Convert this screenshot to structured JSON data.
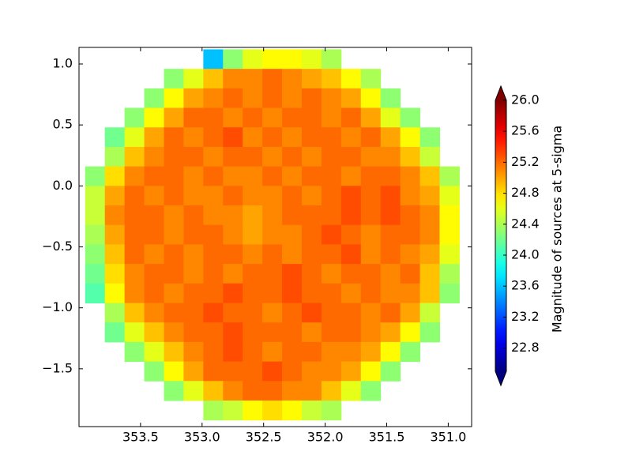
{
  "chart_data": {
    "type": "heatmap",
    "x": [
      353.87,
      353.71,
      353.55,
      353.39,
      353.23,
      353.07,
      352.91,
      352.75,
      352.59,
      352.43,
      352.27,
      352.11,
      351.95,
      351.79,
      351.63,
      351.47,
      351.31,
      351.15,
      350.99,
      350.83
    ],
    "y": [
      1.04,
      0.88,
      0.72,
      0.56,
      0.4,
      0.24,
      0.08,
      -0.08,
      -0.24,
      -0.4,
      -0.56,
      -0.72,
      -0.88,
      -1.04,
      -1.2,
      -1.36,
      -1.52,
      -1.68,
      -1.84
    ],
    "z": [
      [
        null,
        null,
        null,
        null,
        null,
        null,
        23.6,
        24.3,
        24.6,
        24.7,
        24.7,
        24.6,
        24.4,
        null,
        null,
        null,
        null,
        null,
        null,
        null
      ],
      [
        null,
        null,
        null,
        null,
        24.3,
        24.6,
        24.9,
        25.1,
        25.1,
        25.2,
        25.1,
        25.0,
        24.9,
        24.7,
        24.4,
        null,
        null,
        null,
        null,
        null
      ],
      [
        null,
        null,
        null,
        24.3,
        24.7,
        25.0,
        25.1,
        25.2,
        25.1,
        25.2,
        25.1,
        25.2,
        25.1,
        25.0,
        24.7,
        24.3,
        null,
        null,
        null,
        null
      ],
      [
        null,
        null,
        24.3,
        24.7,
        25.0,
        25.2,
        25.2,
        25.1,
        25.2,
        25.1,
        25.2,
        25.2,
        25.1,
        25.2,
        25.0,
        24.6,
        24.3,
        null,
        null,
        null
      ],
      [
        null,
        24.2,
        24.6,
        25.0,
        25.2,
        25.1,
        25.2,
        25.3,
        25.1,
        25.2,
        25.1,
        25.2,
        25.2,
        25.1,
        25.2,
        25.0,
        24.7,
        24.3,
        null,
        null
      ],
      [
        null,
        24.4,
        24.9,
        25.1,
        25.2,
        25.2,
        25.1,
        25.2,
        25.2,
        25.1,
        25.2,
        25.1,
        25.2,
        25.2,
        25.1,
        25.1,
        24.9,
        24.5,
        null,
        null
      ],
      [
        24.3,
        24.8,
        25.1,
        25.2,
        25.2,
        25.1,
        25.2,
        25.1,
        25.1,
        25.2,
        25.1,
        25.2,
        25.2,
        25.1,
        25.2,
        25.2,
        25.1,
        24.9,
        24.4,
        null
      ],
      [
        24.5,
        25.0,
        25.2,
        25.1,
        25.2,
        25.1,
        25.1,
        25.2,
        25.1,
        25.1,
        25.2,
        25.1,
        25.2,
        25.3,
        25.2,
        25.3,
        25.1,
        25.0,
        24.6,
        null
      ],
      [
        24.5,
        25.1,
        25.2,
        25.2,
        25.1,
        25.2,
        25.1,
        25.1,
        25.0,
        25.1,
        25.2,
        25.2,
        25.2,
        25.3,
        25.2,
        25.3,
        25.2,
        25.1,
        24.7,
        null
      ],
      [
        24.4,
        25.0,
        25.2,
        25.2,
        25.1,
        25.2,
        25.2,
        25.1,
        25.0,
        25.1,
        25.1,
        25.2,
        25.3,
        25.2,
        25.1,
        25.2,
        25.2,
        25.1,
        24.7,
        null
      ],
      [
        24.3,
        24.9,
        25.2,
        25.1,
        25.2,
        25.1,
        25.2,
        25.2,
        25.1,
        25.2,
        25.1,
        25.2,
        25.2,
        25.3,
        25.1,
        25.2,
        25.1,
        25.0,
        24.6,
        null
      ],
      [
        24.2,
        24.8,
        25.1,
        25.2,
        25.2,
        25.1,
        25.2,
        25.1,
        25.2,
        25.2,
        25.3,
        25.2,
        25.1,
        25.2,
        25.2,
        25.1,
        25.2,
        24.9,
        24.4,
        null
      ],
      [
        24.1,
        24.7,
        25.1,
        25.2,
        25.1,
        25.2,
        25.2,
        25.3,
        25.2,
        25.2,
        25.3,
        25.2,
        25.2,
        25.1,
        25.2,
        25.1,
        25.1,
        24.9,
        24.3,
        null
      ],
      [
        null,
        24.4,
        24.9,
        25.1,
        25.2,
        25.2,
        25.3,
        25.2,
        25.2,
        25.1,
        25.2,
        25.3,
        25.2,
        25.2,
        25.1,
        25.2,
        25.0,
        24.5,
        null,
        null
      ],
      [
        null,
        24.2,
        24.6,
        24.9,
        25.1,
        25.2,
        25.2,
        25.3,
        25.2,
        25.2,
        25.2,
        25.1,
        25.2,
        25.2,
        25.1,
        25.0,
        24.7,
        24.3,
        null,
        null
      ],
      [
        null,
        null,
        24.3,
        24.6,
        24.9,
        25.1,
        25.2,
        25.3,
        25.2,
        25.1,
        25.2,
        25.2,
        25.1,
        25.1,
        25.0,
        24.7,
        24.3,
        null,
        null,
        null
      ],
      [
        null,
        null,
        null,
        24.3,
        24.7,
        25.0,
        25.2,
        25.2,
        25.2,
        25.3,
        25.2,
        25.1,
        25.1,
        25.0,
        24.7,
        24.3,
        null,
        null,
        null,
        null
      ],
      [
        null,
        null,
        null,
        null,
        24.3,
        24.6,
        24.9,
        25.1,
        25.2,
        25.2,
        25.1,
        25.1,
        24.9,
        24.6,
        24.3,
        null,
        null,
        null,
        null,
        null
      ],
      [
        null,
        null,
        null,
        null,
        null,
        null,
        24.4,
        24.5,
        24.7,
        24.8,
        24.7,
        24.5,
        24.4,
        null,
        null,
        null,
        null,
        null,
        null,
        null
      ]
    ],
    "xlim": [
      354.0,
      350.81
    ],
    "ylim": [
      -1.974,
      1.136
    ],
    "xticks": [
      353.5,
      {
        "value": 353.0,
        "label": "353.0"
      },
      352.5,
      {
        "value": 352.0,
        "label": "352.0"
      },
      351.5,
      {
        "value": 351.0,
        "label": "351.0"
      }
    ],
    "yticks": [
      {
        "value": -1.5,
        "label": "−1.5"
      },
      {
        "value": -1.0,
        "label": "−1.0"
      },
      {
        "value": -0.5,
        "label": "−0.5"
      },
      {
        "value": 0.0,
        "label": "0.0"
      },
      0.5,
      {
        "value": 1.0,
        "label": "1.0"
      }
    ],
    "colormap": "jet",
    "clim": [
      22.5,
      26.0
    ],
    "cticks": [
      22.8,
      23.2,
      23.6,
      {
        "value": 24.0,
        "label": "24.0"
      },
      24.4,
      24.8,
      25.2,
      25.6,
      {
        "value": 26.0,
        "label": "26.0"
      }
    ],
    "colorbar_label": "Magnitude of sources at 5-sigma"
  }
}
